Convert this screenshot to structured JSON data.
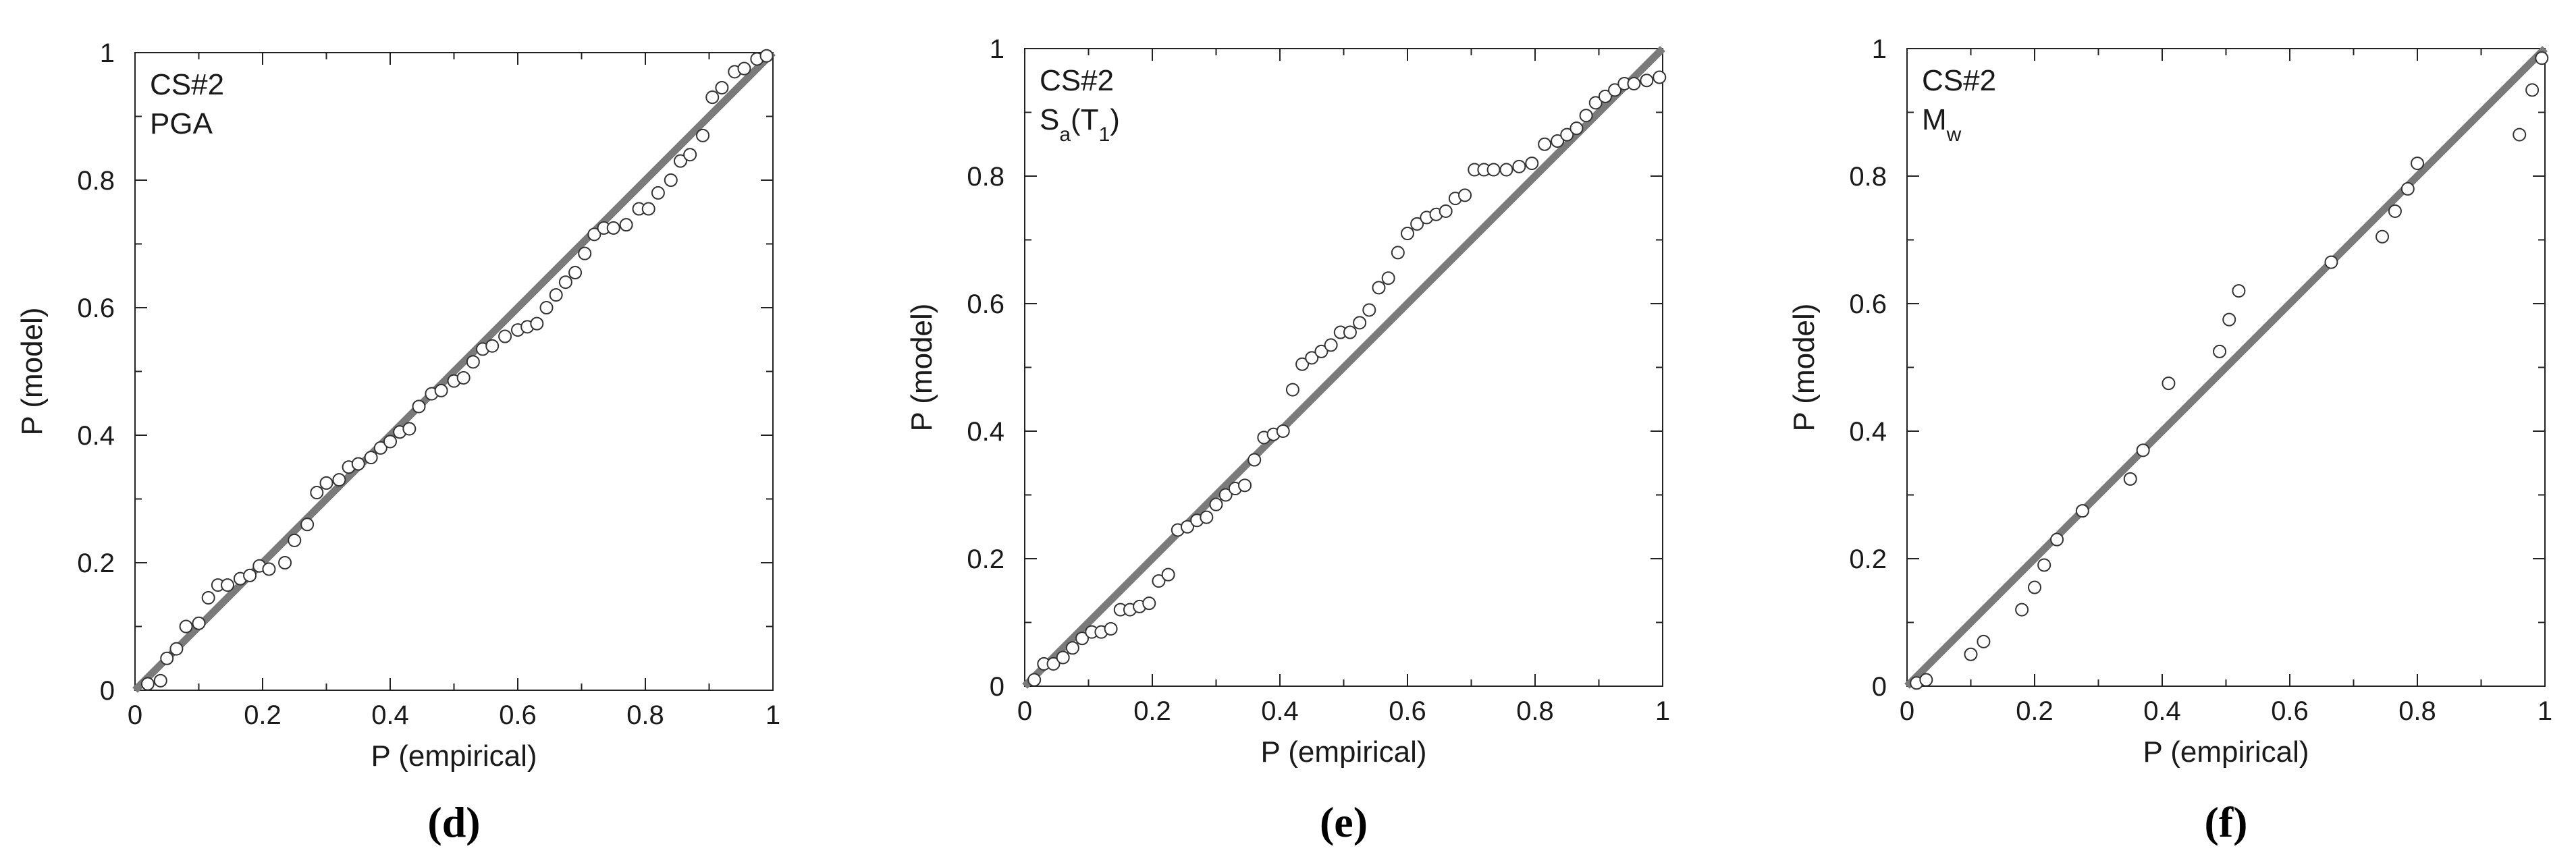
{
  "chart_data": [
    {
      "type": "scatter",
      "tag": "(d)",
      "annotation": [
        "CS#2",
        "PGA"
      ],
      "xlabel": "P (empirical)",
      "ylabel": "P (model)",
      "xlim": [
        0,
        1
      ],
      "ylim": [
        0,
        1
      ],
      "xticks": [
        "0",
        "0.2",
        "0.4",
        "0.6",
        "0.8",
        "1"
      ],
      "yticks": [
        "0",
        "0.2",
        "0.4",
        "0.6",
        "0.8",
        "1"
      ],
      "reference_line": [
        [
          0,
          0
        ],
        [
          1,
          1
        ]
      ],
      "points": [
        [
          0.02,
          0.01
        ],
        [
          0.04,
          0.015
        ],
        [
          0.05,
          0.05
        ],
        [
          0.065,
          0.065
        ],
        [
          0.08,
          0.1
        ],
        [
          0.1,
          0.105
        ],
        [
          0.115,
          0.145
        ],
        [
          0.13,
          0.165
        ],
        [
          0.145,
          0.165
        ],
        [
          0.165,
          0.175
        ],
        [
          0.18,
          0.18
        ],
        [
          0.195,
          0.195
        ],
        [
          0.21,
          0.19
        ],
        [
          0.235,
          0.2
        ],
        [
          0.25,
          0.235
        ],
        [
          0.27,
          0.26
        ],
        [
          0.285,
          0.31
        ],
        [
          0.3,
          0.325
        ],
        [
          0.32,
          0.33
        ],
        [
          0.335,
          0.35
        ],
        [
          0.35,
          0.355
        ],
        [
          0.37,
          0.365
        ],
        [
          0.385,
          0.38
        ],
        [
          0.4,
          0.39
        ],
        [
          0.415,
          0.405
        ],
        [
          0.43,
          0.41
        ],
        [
          0.445,
          0.445
        ],
        [
          0.465,
          0.465
        ],
        [
          0.48,
          0.47
        ],
        [
          0.5,
          0.485
        ],
        [
          0.515,
          0.49
        ],
        [
          0.53,
          0.515
        ],
        [
          0.545,
          0.535
        ],
        [
          0.56,
          0.54
        ],
        [
          0.58,
          0.555
        ],
        [
          0.6,
          0.565
        ],
        [
          0.615,
          0.57
        ],
        [
          0.63,
          0.575
        ],
        [
          0.645,
          0.6
        ],
        [
          0.66,
          0.62
        ],
        [
          0.675,
          0.64
        ],
        [
          0.69,
          0.655
        ],
        [
          0.705,
          0.685
        ],
        [
          0.72,
          0.715
        ],
        [
          0.735,
          0.725
        ],
        [
          0.75,
          0.725
        ],
        [
          0.77,
          0.73
        ],
        [
          0.79,
          0.755
        ],
        [
          0.805,
          0.755
        ],
        [
          0.82,
          0.78
        ],
        [
          0.84,
          0.8
        ],
        [
          0.855,
          0.83
        ],
        [
          0.87,
          0.84
        ],
        [
          0.89,
          0.87
        ],
        [
          0.905,
          0.93
        ],
        [
          0.92,
          0.945
        ],
        [
          0.94,
          0.97
        ],
        [
          0.955,
          0.975
        ],
        [
          0.975,
          0.99
        ],
        [
          0.99,
          0.995
        ]
      ]
    },
    {
      "type": "scatter",
      "tag": "(e)",
      "annotation": [
        "CS#2",
        "Sa(T1)"
      ],
      "xlabel": "P (empirical)",
      "ylabel": "P (model)",
      "xlim": [
        0,
        1
      ],
      "ylim": [
        0,
        1
      ],
      "xticks": [
        "0",
        "0.2",
        "0.4",
        "0.6",
        "0.8",
        "1"
      ],
      "yticks": [
        "0",
        "0.2",
        "0.4",
        "0.6",
        "0.8",
        "1"
      ],
      "reference_line": [
        [
          0,
          0
        ],
        [
          1,
          1
        ]
      ],
      "points": [
        [
          0.015,
          0.01
        ],
        [
          0.03,
          0.035
        ],
        [
          0.045,
          0.035
        ],
        [
          0.06,
          0.045
        ],
        [
          0.075,
          0.06
        ],
        [
          0.09,
          0.075
        ],
        [
          0.105,
          0.085
        ],
        [
          0.12,
          0.085
        ],
        [
          0.135,
          0.09
        ],
        [
          0.15,
          0.12
        ],
        [
          0.165,
          0.12
        ],
        [
          0.18,
          0.125
        ],
        [
          0.195,
          0.13
        ],
        [
          0.21,
          0.165
        ],
        [
          0.225,
          0.175
        ],
        [
          0.24,
          0.245
        ],
        [
          0.255,
          0.25
        ],
        [
          0.27,
          0.26
        ],
        [
          0.285,
          0.265
        ],
        [
          0.3,
          0.285
        ],
        [
          0.315,
          0.3
        ],
        [
          0.33,
          0.31
        ],
        [
          0.345,
          0.315
        ],
        [
          0.36,
          0.355
        ],
        [
          0.375,
          0.39
        ],
        [
          0.39,
          0.395
        ],
        [
          0.405,
          0.4
        ],
        [
          0.42,
          0.465
        ],
        [
          0.435,
          0.505
        ],
        [
          0.45,
          0.515
        ],
        [
          0.465,
          0.525
        ],
        [
          0.48,
          0.535
        ],
        [
          0.495,
          0.555
        ],
        [
          0.51,
          0.555
        ],
        [
          0.525,
          0.57
        ],
        [
          0.54,
          0.59
        ],
        [
          0.555,
          0.625
        ],
        [
          0.57,
          0.64
        ],
        [
          0.585,
          0.68
        ],
        [
          0.6,
          0.71
        ],
        [
          0.615,
          0.725
        ],
        [
          0.63,
          0.735
        ],
        [
          0.645,
          0.74
        ],
        [
          0.66,
          0.745
        ],
        [
          0.675,
          0.765
        ],
        [
          0.69,
          0.77
        ],
        [
          0.705,
          0.81
        ],
        [
          0.72,
          0.81
        ],
        [
          0.735,
          0.81
        ],
        [
          0.755,
          0.81
        ],
        [
          0.775,
          0.815
        ],
        [
          0.795,
          0.82
        ],
        [
          0.815,
          0.85
        ],
        [
          0.835,
          0.855
        ],
        [
          0.85,
          0.865
        ],
        [
          0.865,
          0.875
        ],
        [
          0.88,
          0.895
        ],
        [
          0.895,
          0.915
        ],
        [
          0.91,
          0.925
        ],
        [
          0.925,
          0.935
        ],
        [
          0.94,
          0.945
        ],
        [
          0.955,
          0.945
        ],
        [
          0.975,
          0.95
        ],
        [
          0.995,
          0.955
        ]
      ]
    },
    {
      "type": "scatter",
      "tag": "(f)",
      "annotation": [
        "CS#2",
        "Mw"
      ],
      "xlabel": "P (empirical)",
      "ylabel": "P (model)",
      "xlim": [
        0,
        1
      ],
      "ylim": [
        0,
        1
      ],
      "xticks": [
        "0",
        "0.2",
        "0.4",
        "0.6",
        "0.8",
        "1"
      ],
      "yticks": [
        "0",
        "0.2",
        "0.4",
        "0.6",
        "0.8",
        "1"
      ],
      "reference_line": [
        [
          0,
          0
        ],
        [
          1,
          1
        ]
      ],
      "points": [
        [
          0.015,
          0.005
        ],
        [
          0.03,
          0.01
        ],
        [
          0.1,
          0.05
        ],
        [
          0.12,
          0.07
        ],
        [
          0.18,
          0.12
        ],
        [
          0.2,
          0.155
        ],
        [
          0.215,
          0.19
        ],
        [
          0.235,
          0.23
        ],
        [
          0.275,
          0.275
        ],
        [
          0.35,
          0.325
        ],
        [
          0.37,
          0.37
        ],
        [
          0.41,
          0.475
        ],
        [
          0.49,
          0.525
        ],
        [
          0.505,
          0.575
        ],
        [
          0.52,
          0.62
        ],
        [
          0.665,
          0.665
        ],
        [
          0.745,
          0.705
        ],
        [
          0.765,
          0.745
        ],
        [
          0.785,
          0.78
        ],
        [
          0.8,
          0.82
        ],
        [
          0.96,
          0.865
        ],
        [
          0.98,
          0.935
        ],
        [
          0.995,
          0.985
        ]
      ]
    }
  ]
}
